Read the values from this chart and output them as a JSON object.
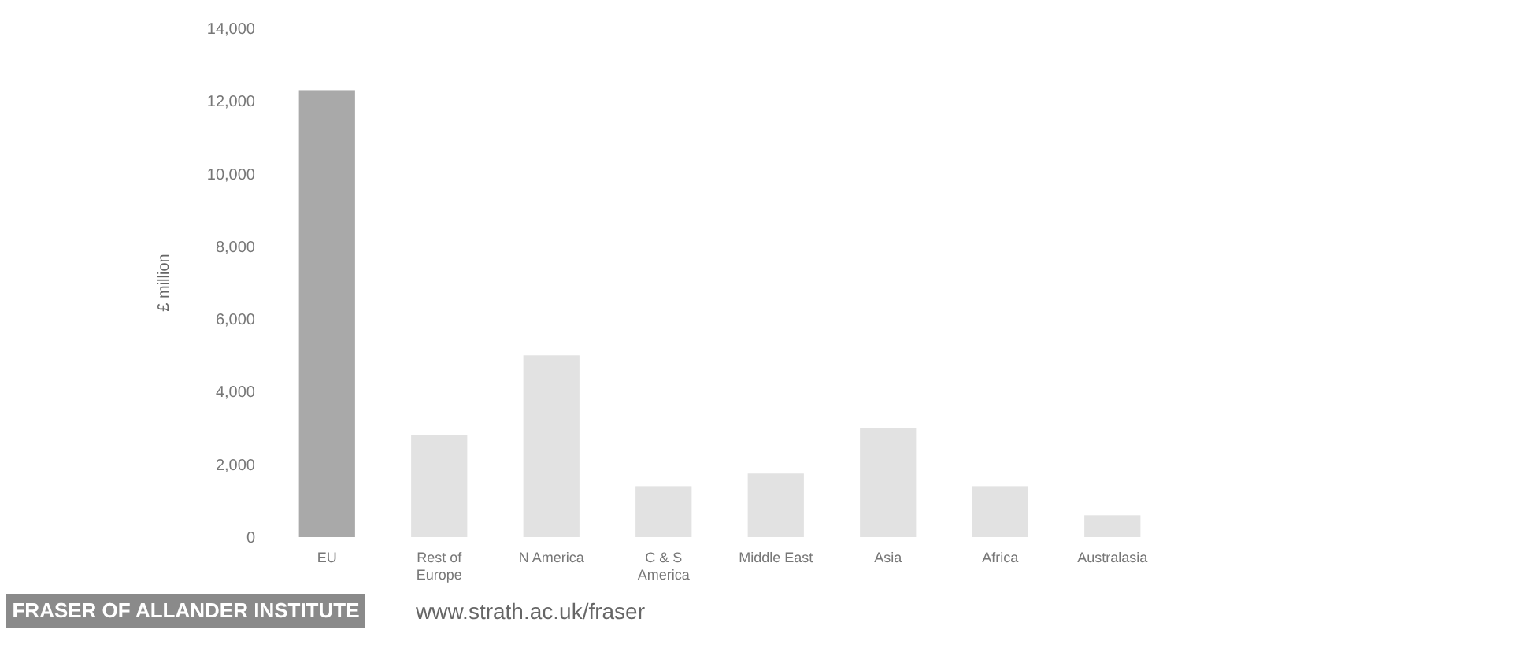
{
  "chart_data": {
    "type": "bar",
    "ylabel": "£ million",
    "categories": [
      "EU",
      "Rest of\nEurope",
      "N America",
      "C & S\nAmerica",
      "Middle East",
      "Asia",
      "Africa",
      "Australasia"
    ],
    "values": [
      12300,
      2800,
      5000,
      1400,
      1750,
      3000,
      1400,
      600
    ],
    "colors": [
      "#a9a9a9",
      "#e2e2e2",
      "#e2e2e2",
      "#e2e2e2",
      "#e2e2e2",
      "#e2e2e2",
      "#e2e2e2",
      "#e2e2e2"
    ],
    "ylim": [
      0,
      14000
    ],
    "yticks": [
      {
        "value": 0,
        "label": "0"
      },
      {
        "value": 2000,
        "label": "2,000"
      },
      {
        "value": 4000,
        "label": "4,000"
      },
      {
        "value": 6000,
        "label": "6,000"
      },
      {
        "value": 8000,
        "label": "8,000"
      },
      {
        "value": 10000,
        "label": "10,000"
      },
      {
        "value": 12000,
        "label": "12,000"
      },
      {
        "value": 14000,
        "label": "14,000"
      }
    ],
    "grid": false,
    "annotations": [
      "FRASER OF ALLANDER INSTITUTE",
      "www.strath.ac.uk/fraser"
    ]
  }
}
